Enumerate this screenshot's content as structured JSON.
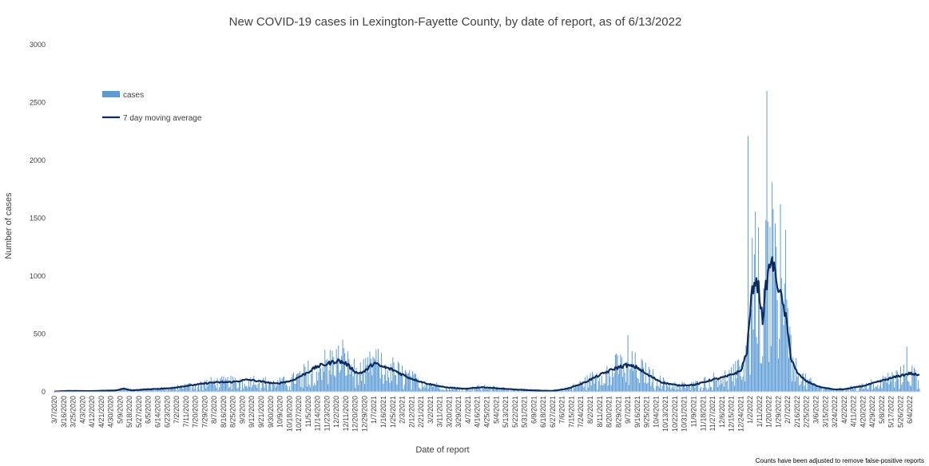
{
  "chart_data": {
    "type": "bar",
    "title": "New COVID-19 cases in Lexington-Fayette County, by date of report, as of 6/13/2022",
    "xlabel": "Date of report",
    "ylabel": "Number of cases",
    "ylim": [
      0,
      3000
    ],
    "yticks": [
      "0",
      "500",
      "1000",
      "1500",
      "2000",
      "2500",
      "3000"
    ],
    "x_start": "3/7/2020",
    "x_end": "6/13/2022",
    "x_tick_labels": [
      "3/7/2020",
      "3/16/2020",
      "3/25/2020",
      "4/3/2020",
      "4/12/2020",
      "4/21/2020",
      "4/30/2020",
      "5/9/2020",
      "5/18/2020",
      "5/27/2020",
      "6/5/2020",
      "6/14/2020",
      "6/23/2020",
      "7/2/2020",
      "7/11/2020",
      "7/20/2020",
      "7/29/2020",
      "8/7/2020",
      "8/16/2020",
      "8/25/2020",
      "9/3/2020",
      "9/12/2020",
      "9/21/2020",
      "9/30/2020",
      "10/9/2020",
      "10/18/2020",
      "10/27/2020",
      "11/5/2020",
      "11/14/2020",
      "11/23/2020",
      "12/2/2020",
      "12/11/2020",
      "12/20/2020",
      "12/29/2020",
      "1/7/2021",
      "1/16/2021",
      "1/25/2021",
      "2/3/2021",
      "2/12/2021",
      "2/21/2021",
      "3/2/2021",
      "3/11/2021",
      "3/20/2021",
      "3/29/2021",
      "4/7/2021",
      "4/16/2021",
      "4/25/2021",
      "5/4/2021",
      "5/13/2021",
      "5/22/2021",
      "5/31/2021",
      "6/9/2021",
      "6/18/2021",
      "6/27/2021",
      "7/6/2021",
      "7/15/2021",
      "7/24/2021",
      "8/2/2021",
      "8/11/2021",
      "8/20/2021",
      "8/29/2021",
      "9/7/2021",
      "9/16/2021",
      "9/25/2021",
      "10/4/2021",
      "10/13/2021",
      "10/22/2021",
      "10/31/2021",
      "11/9/2021",
      "11/18/2021",
      "11/27/2021",
      "12/6/2021",
      "12/15/2021",
      "12/24/2021",
      "1/2/2022",
      "1/11/2022",
      "1/20/2022",
      "1/29/2022",
      "2/7/2022",
      "2/16/2022",
      "2/25/2022",
      "3/6/2022",
      "3/15/2022",
      "3/24/2022",
      "4/2/2022",
      "4/11/2022",
      "4/20/2022",
      "4/29/2022",
      "5/8/2022",
      "5/17/2022",
      "5/26/2022",
      "6/4/2022"
    ],
    "series": [
      {
        "name": "cases",
        "kind": "bar",
        "color": "#5b9bd5"
      },
      {
        "name": "7 day moving average",
        "kind": "line",
        "color": "#0c2b5e"
      }
    ],
    "moving_average_anchors": [
      [
        "3/7/2020",
        2
      ],
      [
        "3/20/2020",
        8
      ],
      [
        "4/10/2020",
        6
      ],
      [
        "5/5/2020",
        12
      ],
      [
        "5/12/2020",
        28
      ],
      [
        "5/20/2020",
        12
      ],
      [
        "6/5/2020",
        22
      ],
      [
        "6/25/2020",
        30
      ],
      [
        "7/15/2020",
        55
      ],
      [
        "8/5/2020",
        80
      ],
      [
        "8/25/2020",
        85
      ],
      [
        "9/8/2020",
        105
      ],
      [
        "9/20/2020",
        90
      ],
      [
        "10/5/2020",
        70
      ],
      [
        "10/20/2020",
        95
      ],
      [
        "11/1/2020",
        150
      ],
      [
        "11/14/2020",
        220
      ],
      [
        "11/23/2020",
        240
      ],
      [
        "12/3/2020",
        270
      ],
      [
        "12/11/2020",
        245
      ],
      [
        "12/22/2020",
        160
      ],
      [
        "12/29/2020",
        175
      ],
      [
        "1/7/2021",
        250
      ],
      [
        "1/12/2021",
        225
      ],
      [
        "1/25/2021",
        190
      ],
      [
        "2/10/2021",
        120
      ],
      [
        "2/25/2021",
        75
      ],
      [
        "3/15/2021",
        40
      ],
      [
        "4/5/2021",
        25
      ],
      [
        "4/20/2021",
        40
      ],
      [
        "5/5/2021",
        30
      ],
      [
        "5/25/2021",
        18
      ],
      [
        "6/15/2021",
        10
      ],
      [
        "6/27/2021",
        8
      ],
      [
        "7/10/2021",
        25
      ],
      [
        "7/25/2021",
        70
      ],
      [
        "8/10/2021",
        140
      ],
      [
        "8/25/2021",
        200
      ],
      [
        "9/5/2021",
        230
      ],
      [
        "9/16/2021",
        210
      ],
      [
        "9/25/2021",
        150
      ],
      [
        "10/10/2021",
        80
      ],
      [
        "10/25/2021",
        55
      ],
      [
        "11/10/2021",
        60
      ],
      [
        "11/25/2021",
        100
      ],
      [
        "12/10/2021",
        130
      ],
      [
        "12/24/2021",
        180
      ],
      [
        "12/30/2021",
        350
      ],
      [
        "1/3/2022",
        800
      ],
      [
        "1/6/2022",
        970
      ],
      [
        "1/10/2022",
        900
      ],
      [
        "1/14/2022",
        620
      ],
      [
        "1/17/2022",
        900
      ],
      [
        "1/22/2022",
        1150
      ],
      [
        "1/28/2022",
        950
      ],
      [
        "2/5/2022",
        650
      ],
      [
        "2/10/2022",
        300
      ],
      [
        "2/16/2022",
        160
      ],
      [
        "2/25/2022",
        90
      ],
      [
        "3/10/2022",
        40
      ],
      [
        "3/24/2022",
        20
      ],
      [
        "4/2/2022",
        22
      ],
      [
        "4/20/2022",
        50
      ],
      [
        "5/8/2022",
        95
      ],
      [
        "5/26/2022",
        140
      ],
      [
        "6/4/2022",
        160
      ],
      [
        "6/13/2022",
        140
      ]
    ],
    "peak_cases": [
      [
        "12/8/2020",
        450
      ],
      [
        "1/8/2021",
        280
      ],
      [
        "9/7/2021",
        490
      ],
      [
        "12/31/2021",
        2210
      ],
      [
        "1/4/2022",
        1330
      ],
      [
        "1/18/2022",
        2600
      ],
      [
        "1/23/2022",
        1810
      ],
      [
        "1/31/2022",
        1620
      ],
      [
        "2/5/2022",
        1400
      ],
      [
        "6/1/2022",
        390
      ]
    ],
    "legend_position": "top-left",
    "grid": false,
    "note": "Counts have been adjusted to remove false-positive reports"
  }
}
